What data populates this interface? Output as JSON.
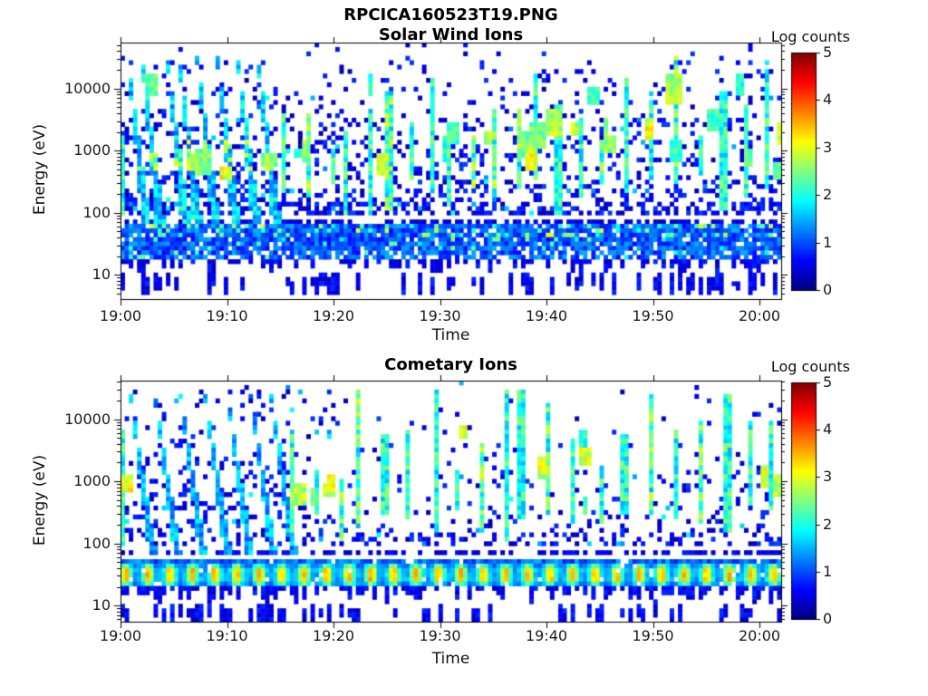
{
  "figure": {
    "title": "RPCICA160523T19.PNG",
    "background": "#ffffff",
    "axis_color": "#000000",
    "text_color": "#1a1a1a"
  },
  "chart_data": [
    {
      "type": "heatmap",
      "title": "Solar Wind Ions",
      "xlabel": "Time",
      "ylabel": "Energy (eV)",
      "x_tick_labels": [
        "19:00",
        "19:10",
        "19:20",
        "19:30",
        "19:40",
        "19:50",
        "20:00"
      ],
      "x_range": [
        "19:00",
        "20:02"
      ],
      "y_scale": "log",
      "y_tick_labels": [
        "10",
        "100",
        "1000",
        "10000"
      ],
      "y_tick_values_ev": [
        10,
        100,
        1000,
        10000
      ],
      "y_range_ev": [
        4.5,
        52000
      ],
      "colorbar": {
        "label": "Log counts",
        "tick_labels": [
          "0",
          "1",
          "2",
          "3",
          "4",
          "5"
        ],
        "range": [
          0,
          5
        ],
        "colormap": "jet"
      },
      "features": {
        "seed": 160523,
        "noise_density": 0.17,
        "noise_left_boost": 1.3,
        "band_log_e": [
          1.27,
          1.8
        ],
        "band_style": "blue-cyan",
        "band_fleck_prob": 0.13,
        "dotted_line_log_e": 1.86,
        "dense_rows_log_e_max": 2.2,
        "dense_rows_density": 0.52,
        "under_dash_col_prob": 0.55,
        "diag_streak_starts_min": [
          0.7,
          2.0,
          4.4,
          5.5,
          7.2,
          9.1,
          11.0,
          12.9
        ],
        "diag_top_log_e": 4.45,
        "diag_slope_log_e_per_min": 1.5,
        "vert_streak_times_min": [
          0.2,
          15.4,
          17.6,
          19.9,
          21.3,
          23.6,
          25.2,
          27.4,
          29.1,
          30.7,
          33.3,
          35.1,
          37.3,
          38.9,
          41.1,
          43.4,
          45.3,
          47.6,
          49.9,
          52.1,
          54.4,
          56.6,
          58.8,
          60.6
        ],
        "blob_count": 30
      }
    },
    {
      "type": "heatmap",
      "title": "Cometary Ions",
      "xlabel": "Time",
      "ylabel": "Energy (eV)",
      "x_tick_labels": [
        "19:00",
        "19:10",
        "19:20",
        "19:30",
        "19:40",
        "19:50",
        "20:00"
      ],
      "x_range": [
        "19:00",
        "20:02"
      ],
      "y_scale": "log",
      "y_tick_labels": [
        "10",
        "100",
        "1000",
        "10000"
      ],
      "y_tick_values_ev": [
        10,
        100,
        1000,
        10000
      ],
      "y_range_ev": [
        5.5,
        42000
      ],
      "colorbar": {
        "label": "Log counts",
        "tick_labels": [
          "0",
          "1",
          "2",
          "3",
          "4",
          "5"
        ],
        "range": [
          0,
          5
        ],
        "colormap": "jet"
      },
      "features": {
        "seed": 523160,
        "noise_density": 0.09,
        "noise_left_boost": 1.6,
        "band_log_e": [
          1.3,
          1.78
        ],
        "band_style": "yellow-core",
        "band_blob_period_min": 2.1,
        "band_peak_log_counts": 3.4,
        "dotted_line_log_e": 1.84,
        "dense_rows_log_e_max": 2.2,
        "dense_rows_density": 0.3,
        "under_dash_col_prob": 0.6,
        "diag_streak_starts_min": [
          0.9,
          3.2,
          5.6,
          7.9,
          10.0,
          12.2,
          14.1
        ],
        "diag_top_log_e": 4.4,
        "diag_slope_log_e_per_min": 1.2,
        "vert_streak_times_min": [
          0.3,
          16.0,
          18.3,
          20.6,
          22.4,
          24.8,
          27.1,
          29.5,
          31.6,
          33.8,
          36.1,
          37.6,
          40.2,
          42.6,
          45.0,
          47.3,
          49.7,
          52.2,
          54.6,
          57.0,
          59.3,
          61.0
        ],
        "blob_count": 12
      }
    }
  ]
}
